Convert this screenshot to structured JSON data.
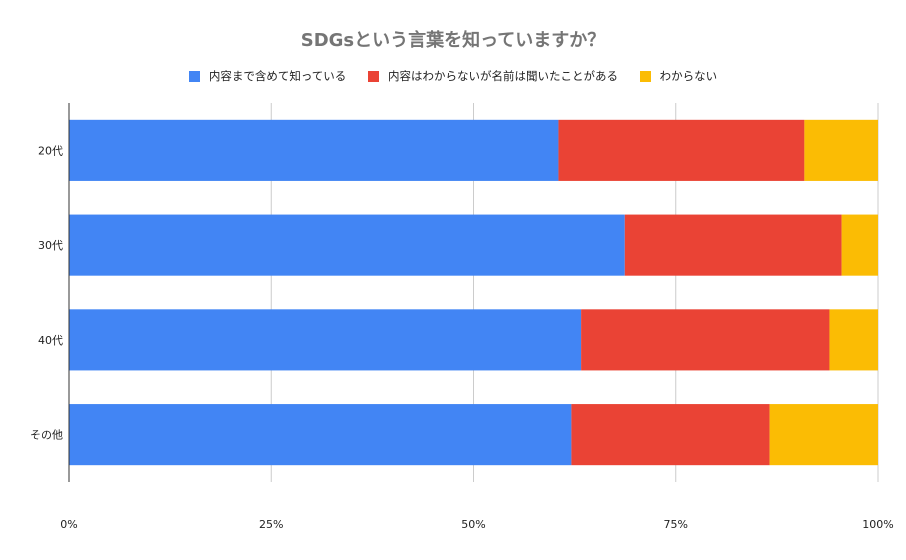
{
  "title": "SDGsという言葉を知っていますか？",
  "colors": {
    "blue": "#4285f4",
    "red": "#ea4335",
    "yellow": "#fbbc04"
  },
  "chart_data": {
    "type": "bar",
    "orientation": "horizontal",
    "stacked": "percent",
    "title": "SDGsという言葉を知っていますか？",
    "categories": [
      "20代",
      "30代",
      "40代",
      "その他"
    ],
    "series": [
      {
        "name": "内容まで含めて知っている",
        "color": "#4285f4",
        "values": [
          60.5,
          68.7,
          63.3,
          62.1
        ]
      },
      {
        "name": "内容はわからないが名前は聞いたことがある",
        "color": "#ea4335",
        "values": [
          30.4,
          26.8,
          30.7,
          24.5
        ]
      },
      {
        "name": "わからない",
        "color": "#fbbc04",
        "values": [
          9.1,
          4.5,
          6.0,
          13.4
        ]
      }
    ],
    "xlim": [
      0,
      100
    ],
    "xticks": [
      "0%",
      "25%",
      "50%",
      "75%",
      "100%"
    ],
    "grid": true,
    "legend": "top"
  }
}
